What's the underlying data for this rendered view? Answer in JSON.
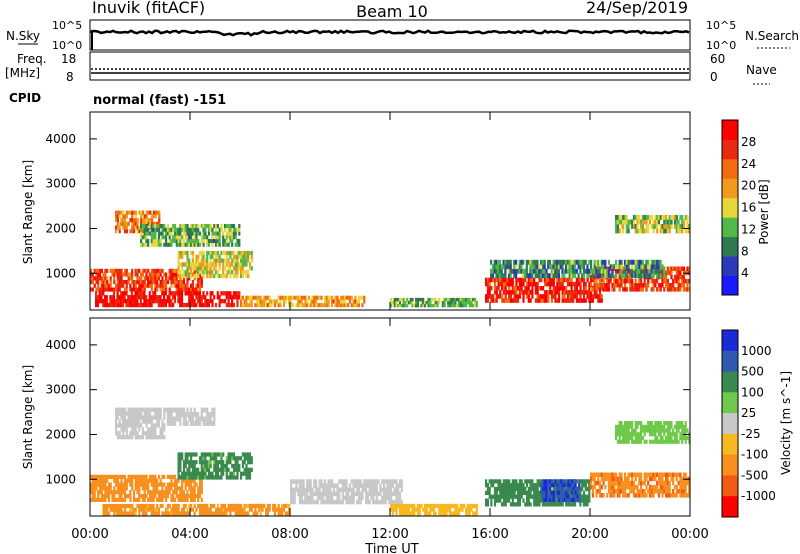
{
  "header": {
    "station": "Inuvik (fitACF)",
    "beam": "Beam 10",
    "date": "24/Sep/2019"
  },
  "status_panels": {
    "nsky_label": "N.Sky",
    "nsky_ticks": [
      "10^5",
      "10^0"
    ],
    "nsearch_label": "N.Search",
    "nsearch_ticks": [
      "10^5",
      "10^0"
    ],
    "freq_label_1": "Freq.",
    "freq_label_2": "[MHz]",
    "freq_ticks": [
      "18",
      "8"
    ],
    "nave_label": "Nave",
    "nave_ticks": [
      "60",
      "0"
    ],
    "cpid_label": "CPID",
    "cpid_value": "normal (fast) -151"
  },
  "colors": {
    "power": [
      "#1a1aff",
      "#2d3ab8",
      "#2f7a4f",
      "#52b84a",
      "#e6d73a",
      "#f29a1e",
      "#f36a10",
      "#e82a10",
      "#ff0000"
    ],
    "velocity": [
      "#ff0000",
      "#f35a14",
      "#f7901e",
      "#f7b820",
      "#c8c8c8",
      "#6fc94a",
      "#3a8a4f",
      "#2f5ab0",
      "#1a2ad9"
    ]
  },
  "chart_data": [
    {
      "type": "heatmap",
      "name": "power",
      "xlabel": "",
      "ylabel": "Slant Range [km]",
      "xlim": [
        "00:00",
        "24:00"
      ],
      "ylim": [
        180,
        4600
      ],
      "yticks": [
        "1000",
        "2000",
        "3000",
        "4000"
      ],
      "colorbar_label": "Power [dB]",
      "colorbar_ticks": [
        "4",
        "8",
        "12",
        "16",
        "20",
        "24",
        "28"
      ],
      "colorbar_range": [
        0,
        32
      ],
      "bands": [
        {
          "t0": 0.0,
          "t1": 4.5,
          "r0": 600,
          "r1": 1100,
          "v": 26
        },
        {
          "t0": 0.2,
          "t1": 6.0,
          "r0": 250,
          "r1": 600,
          "v": 30
        },
        {
          "t0": 6.0,
          "t1": 11.0,
          "r0": 250,
          "r1": 500,
          "v": 20
        },
        {
          "t0": 1.0,
          "t1": 2.8,
          "r0": 1900,
          "r1": 2400,
          "v": 22
        },
        {
          "t0": 3.5,
          "t1": 6.5,
          "r0": 900,
          "r1": 1500,
          "v": 16
        },
        {
          "t0": 2.0,
          "t1": 6.0,
          "r0": 1600,
          "r1": 2100,
          "v": 12
        },
        {
          "t0": 15.8,
          "t1": 20.5,
          "r0": 350,
          "r1": 900,
          "v": 28
        },
        {
          "t0": 20.0,
          "t1": 24.0,
          "r0": 600,
          "r1": 1150,
          "v": 26
        },
        {
          "t0": 16.0,
          "t1": 23.0,
          "r0": 900,
          "r1": 1300,
          "v": 10
        },
        {
          "t0": 12.0,
          "t1": 15.5,
          "r0": 250,
          "r1": 450,
          "v": 12
        },
        {
          "t0": 21.0,
          "t1": 24.0,
          "r0": 1900,
          "r1": 2300,
          "v": 14
        }
      ]
    },
    {
      "type": "heatmap",
      "name": "velocity",
      "xlabel": "Time UT",
      "ylabel": "Slant Range [km]",
      "xlim": [
        "00:00",
        "24:00"
      ],
      "ylim": [
        180,
        4600
      ],
      "xticks": [
        "00:00",
        "04:00",
        "08:00",
        "12:00",
        "16:00",
        "20:00",
        "00:00"
      ],
      "yticks": [
        "1000",
        "2000",
        "3000",
        "4000"
      ],
      "colorbar_label": "Velocity [m s^-1]",
      "colorbar_ticks": [
        "1000",
        "500",
        "100",
        "25",
        "-25",
        "-100",
        "-500",
        "-1000"
      ],
      "bands": [
        {
          "t0": 0.0,
          "t1": 4.5,
          "r0": 500,
          "r1": 1100,
          "v": -300
        },
        {
          "t0": 1.0,
          "t1": 3.0,
          "r0": 1900,
          "r1": 2600,
          "v": 0
        },
        {
          "t0": 3.0,
          "t1": 5.0,
          "r0": 2200,
          "r1": 2600,
          "v": 0
        },
        {
          "t0": 3.5,
          "t1": 6.5,
          "r0": 1000,
          "r1": 1600,
          "v": 150
        },
        {
          "t0": 8.0,
          "t1": 12.5,
          "r0": 450,
          "r1": 1000,
          "v": 0
        },
        {
          "t0": 0.5,
          "t1": 8.0,
          "r0": 200,
          "r1": 450,
          "v": -150
        },
        {
          "t0": 15.8,
          "t1": 20.0,
          "r0": 400,
          "r1": 1000,
          "v": 300
        },
        {
          "t0": 18.0,
          "t1": 19.6,
          "r0": 500,
          "r1": 1000,
          "v": 1000
        },
        {
          "t0": 20.0,
          "t1": 24.0,
          "r0": 600,
          "r1": 1150,
          "v": -400
        },
        {
          "t0": 21.0,
          "t1": 24.0,
          "r0": 1800,
          "r1": 2300,
          "v": 60
        },
        {
          "t0": 12.0,
          "t1": 15.5,
          "r0": 200,
          "r1": 450,
          "v": -60
        }
      ]
    }
  ]
}
